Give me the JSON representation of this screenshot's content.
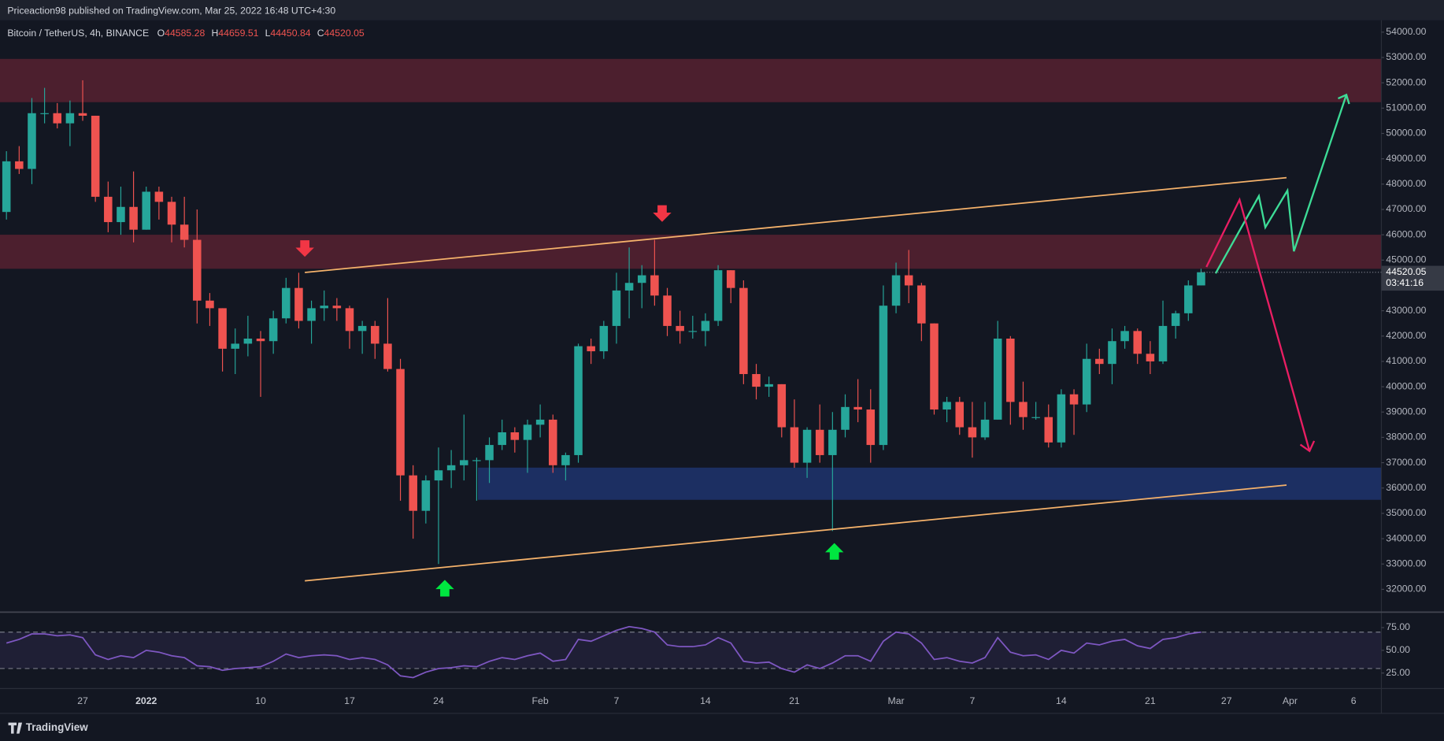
{
  "header": "Priceaction98 published on TradingView.com, Mar 25, 2022 16:48 UTC+4:30",
  "brand": "TradingView",
  "legend": {
    "symbol": "Bitcoin / TetherUS, 4h, BINANCE",
    "ohlc": [
      {
        "label": "O",
        "value": 44585.28
      },
      {
        "label": "H",
        "value": 44659.51
      },
      {
        "label": "L",
        "value": 44450.84
      },
      {
        "label": "C",
        "value": 44520.05
      }
    ]
  },
  "chart_data": [
    {
      "type": "candlestick",
      "up_color": "#26a69a",
      "down_color": "#ef5350",
      "countdown": "03:41:16",
      "categories": [
        null,
        null,
        null,
        null,
        null,
        null,
        "27",
        null,
        null,
        null,
        null,
        "2022",
        null,
        null,
        null,
        null,
        null,
        null,
        null,
        null,
        "10",
        null,
        null,
        null,
        null,
        null,
        null,
        "17",
        null,
        null,
        null,
        null,
        null,
        null,
        "24",
        null,
        null,
        null,
        null,
        null,
        null,
        null,
        "Feb",
        null,
        null,
        null,
        null,
        null,
        "7",
        null,
        null,
        null,
        null,
        null,
        null,
        "14",
        null,
        null,
        null,
        null,
        null,
        null,
        "21",
        null,
        null,
        null,
        null,
        null,
        null,
        null,
        "Mar",
        null,
        null,
        null,
        null,
        null,
        "7",
        null,
        null,
        null,
        null,
        null,
        null,
        "14",
        null,
        null,
        null,
        null,
        null,
        null,
        "21",
        null,
        null,
        null,
        null,
        null,
        "27",
        null,
        null,
        null,
        null,
        "Apr",
        null,
        null,
        null,
        null,
        "6"
      ],
      "open": [
        46900,
        48900,
        48600,
        50800,
        50800,
        50400,
        50800,
        50700,
        47500,
        46500,
        47100,
        46200,
        47700,
        47300,
        46400,
        45800,
        43400,
        43100,
        41500,
        41700,
        41900,
        41800,
        42700,
        43900,
        42600,
        43100,
        43200,
        43100,
        42200,
        42400,
        41700,
        40700,
        36500,
        35100,
        36300,
        36700,
        36900,
        37100,
        37100,
        37700,
        38200,
        37900,
        38500,
        38700,
        36900,
        37300,
        41600,
        41400,
        42400,
        43800,
        44100,
        44400,
        43600,
        42400,
        42200,
        42200,
        42600,
        44600,
        43900,
        40500,
        40000,
        40100,
        38400,
        37000,
        38300,
        37300,
        38300,
        39200,
        39100,
        37700,
        43200,
        44400,
        44000,
        42500,
        39100,
        39400,
        38400,
        38000,
        38700,
        41900,
        39400,
        38800,
        38800,
        37800,
        39700,
        39300,
        41100,
        40900,
        41800,
        42200,
        41300,
        41000,
        42400,
        42900,
        44000,
        null,
        null,
        null,
        null,
        null,
        null,
        null,
        null,
        null,
        null,
        null,
        null
      ],
      "high": [
        49300,
        49500,
        51400,
        51800,
        51200,
        51300,
        52100,
        50700,
        48100,
        47900,
        48500,
        47900,
        47900,
        47500,
        47500,
        47000,
        43700,
        43100,
        42300,
        42800,
        42200,
        43000,
        44300,
        44500,
        43400,
        43800,
        43500,
        43200,
        42600,
        42600,
        43500,
        41100,
        36900,
        36500,
        37600,
        37500,
        38900,
        37200,
        38000,
        38700,
        38400,
        38700,
        39300,
        38900,
        37400,
        41700,
        41900,
        42600,
        44500,
        45500,
        44800,
        45800,
        43900,
        43000,
        42800,
        42900,
        44800,
        44600,
        44200,
        40900,
        40400,
        40100,
        39500,
        38400,
        39300,
        39000,
        39700,
        40300,
        39900,
        44000,
        44900,
        45400,
        44100,
        42500,
        39600,
        39600,
        39400,
        39400,
        42600,
        42000,
        40200,
        39400,
        39300,
        39900,
        39900,
        41700,
        41500,
        42300,
        42400,
        42300,
        41800,
        43400,
        43000,
        44200,
        44659.51,
        null,
        null,
        null,
        null,
        null,
        null,
        null,
        null,
        null,
        null,
        null,
        null
      ],
      "low": [
        46600,
        48400,
        48000,
        50400,
        50200,
        49500,
        50500,
        47300,
        46100,
        46000,
        45700,
        46200,
        46600,
        45700,
        45500,
        42500,
        42400,
        40600,
        40500,
        41200,
        39600,
        41300,
        42500,
        42300,
        41700,
        42600,
        42600,
        41500,
        41300,
        41100,
        40600,
        35500,
        34000,
        34600,
        33000,
        36000,
        36300,
        35500,
        36200,
        37500,
        37400,
        36600,
        38000,
        36600,
        36300,
        37000,
        40900,
        41100,
        41700,
        42700,
        43100,
        43200,
        42000,
        41700,
        41900,
        41600,
        42400,
        43300,
        40100,
        39500,
        39600,
        38000,
        36800,
        36400,
        37000,
        34300,
        38000,
        38600,
        37000,
        37500,
        42900,
        43300,
        41800,
        38900,
        38600,
        38100,
        37200,
        37900,
        38700,
        38500,
        38300,
        38700,
        37600,
        37600,
        38100,
        39000,
        40500,
        40100,
        41500,
        40900,
        40500,
        40900,
        41900,
        42600,
        44000,
        null,
        null,
        null,
        null,
        null,
        null,
        null,
        null,
        null,
        null,
        null,
        null
      ],
      "close": [
        48900,
        48600,
        50800,
        50800,
        50400,
        50800,
        50700,
        47500,
        46500,
        47100,
        46200,
        47700,
        47300,
        46400,
        45800,
        43400,
        43100,
        41500,
        41700,
        41900,
        41800,
        42700,
        43900,
        42600,
        43100,
        43200,
        43100,
        42200,
        42400,
        41700,
        40700,
        36500,
        35100,
        36300,
        36700,
        36900,
        37100,
        37100,
        37700,
        38200,
        37900,
        38500,
        38700,
        36900,
        37300,
        41600,
        41400,
        42400,
        43800,
        44100,
        44400,
        43600,
        42400,
        42200,
        42200,
        42600,
        44600,
        43900,
        40500,
        40000,
        40100,
        38400,
        37000,
        38300,
        37300,
        38300,
        39200,
        39100,
        37700,
        43200,
        44400,
        44000,
        42500,
        39100,
        39400,
        38400,
        38000,
        38700,
        41900,
        39400,
        38800,
        38800,
        37800,
        39700,
        39300,
        41100,
        40900,
        41800,
        42200,
        41300,
        41000,
        42400,
        42900,
        44000,
        44520.05,
        null,
        null,
        null,
        null,
        null,
        null,
        null,
        null,
        null,
        null,
        null,
        null
      ],
      "ylim": [
        31100,
        54470
      ],
      "yticks": [
        {
          "value": 32000,
          "label": "32000.00"
        },
        {
          "value": 33000,
          "label": "33000.00"
        },
        {
          "value": 34000,
          "label": "34000.00"
        },
        {
          "value": 35000,
          "label": "35000.00"
        },
        {
          "value": 36000,
          "label": "36000.00"
        },
        {
          "value": 37000,
          "label": "37000.00"
        },
        {
          "value": 38000,
          "label": "38000.00"
        },
        {
          "value": 39000,
          "label": "39000.00"
        },
        {
          "value": 40000,
          "label": "40000.00"
        },
        {
          "value": 41000,
          "label": "41000.00"
        },
        {
          "value": 42000,
          "label": "42000.00"
        },
        {
          "value": 43000,
          "label": "43000.00"
        },
        {
          "value": 44000,
          "label": "44000.00"
        },
        {
          "value": 45000,
          "label": "45000.00"
        },
        {
          "value": 46000,
          "label": "46000.00"
        },
        {
          "value": 47000,
          "label": "47000.00"
        },
        {
          "value": 48000,
          "label": "48000.00"
        },
        {
          "value": 49000,
          "label": "49000.00"
        },
        {
          "value": 50000,
          "label": "50000.00"
        },
        {
          "value": 51000,
          "label": "51000.00"
        },
        {
          "value": 52000,
          "label": "52000.00"
        },
        {
          "value": 53000,
          "label": "53000.00"
        },
        {
          "value": 54000,
          "label": "54000.00"
        }
      ],
      "grid": false
    },
    {
      "type": "line",
      "color": "#7e57c2",
      "values": [
        58,
        62,
        68,
        68,
        66,
        67,
        64,
        45,
        40,
        44,
        42,
        50,
        48,
        44,
        42,
        33,
        32,
        28,
        30,
        31,
        32,
        38,
        46,
        42,
        44,
        45,
        44,
        40,
        42,
        40,
        34,
        22,
        20,
        26,
        30,
        31,
        33,
        32,
        38,
        42,
        40,
        44,
        47,
        38,
        40,
        62,
        60,
        66,
        72,
        76,
        74,
        70,
        56,
        54,
        54,
        56,
        64,
        58,
        38,
        36,
        37,
        30,
        26,
        34,
        30,
        36,
        44,
        44,
        38,
        60,
        70,
        68,
        58,
        40,
        42,
        38,
        36,
        42,
        64,
        48,
        44,
        45,
        40,
        50,
        47,
        58,
        56,
        60,
        62,
        55,
        52,
        62,
        64,
        68,
        70,
        null,
        null,
        null,
        null,
        null,
        null,
        null,
        null,
        null,
        null,
        null,
        null
      ],
      "band": [
        30,
        70
      ],
      "ylim": [
        8,
        92
      ],
      "yticks": [
        {
          "value": 25,
          "label": "25.00"
        },
        {
          "value": 50,
          "label": "50.00"
        },
        {
          "value": 75,
          "label": "75.00"
        }
      ]
    }
  ]
}
